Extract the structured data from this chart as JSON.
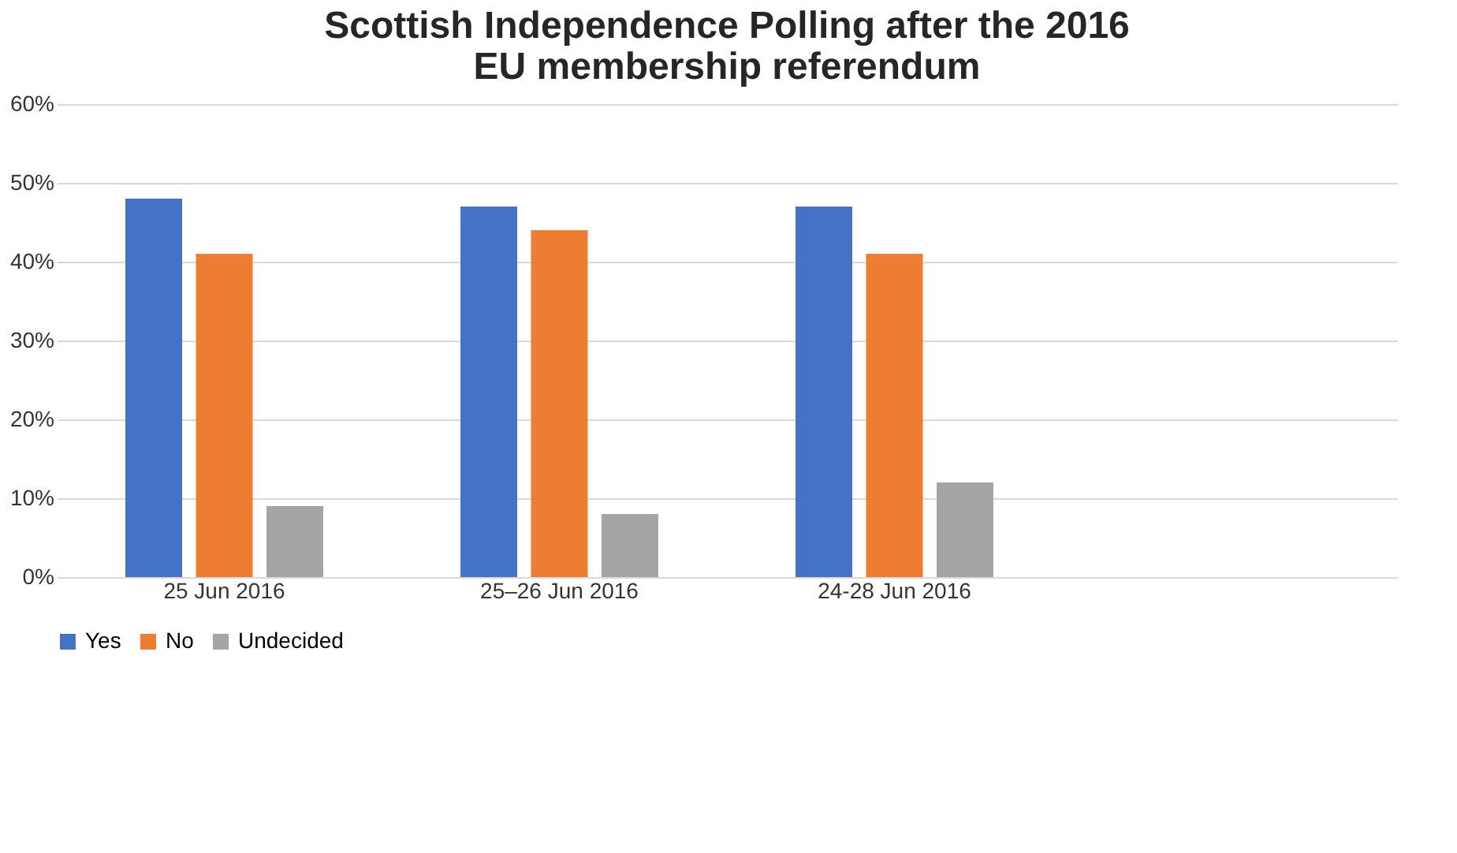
{
  "chart_data": {
    "type": "bar",
    "title": "Scottish Independence Polling after the 2016 EU membership referendum",
    "categories": [
      "25 Jun 2016",
      "25–26 Jun 2016",
      "24-28 Jun 2016",
      null
    ],
    "series": [
      {
        "name": "Yes",
        "color": "#4472c4",
        "values": [
          48,
          47,
          47,
          null
        ]
      },
      {
        "name": "No",
        "color": "#ed7d31",
        "values": [
          41,
          44,
          41,
          null
        ]
      },
      {
        "name": "Undecided",
        "color": "#a5a5a5",
        "values": [
          9,
          8,
          12,
          null
        ]
      }
    ],
    "ylim": [
      0,
      60
    ],
    "yticks": [
      {
        "value": 0,
        "label": "0%"
      },
      {
        "value": 10,
        "label": "10%"
      },
      {
        "value": 20,
        "label": "20%"
      },
      {
        "value": 30,
        "label": "30%"
      },
      {
        "value": 40,
        "label": "40%"
      },
      {
        "value": 50,
        "label": "50%"
      },
      {
        "value": 60,
        "label": "60%"
      }
    ],
    "grid": "y",
    "legend": "bottom"
  }
}
